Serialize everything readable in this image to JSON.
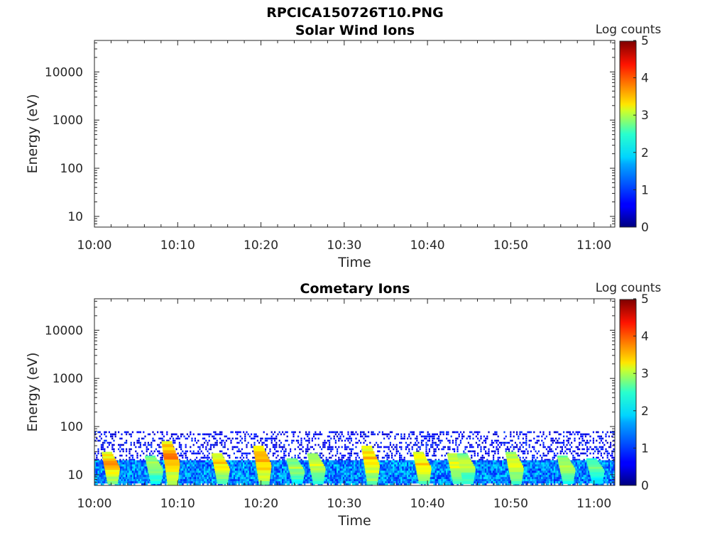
{
  "figure_title": "RPCICA150726T10.PNG",
  "chart_data": [
    {
      "type": "heatmap",
      "title": "Solar Wind Ions",
      "xlabel": "Time",
      "ylabel": "Energy (eV)",
      "y_scale": "log",
      "ylim": [
        6,
        45000
      ],
      "y_ticks": [
        {
          "value": 10,
          "label": "10"
        },
        {
          "value": 100,
          "label": "100"
        },
        {
          "value": 1000,
          "label": "1000"
        },
        {
          "value": 10000,
          "label": "10000"
        }
      ],
      "x_range_minutes": [
        0,
        62.5
      ],
      "x_ticks": [
        {
          "value": 0,
          "label": "10:00"
        },
        {
          "value": 10,
          "label": "10:10"
        },
        {
          "value": 20,
          "label": "10:20"
        },
        {
          "value": 30,
          "label": "10:30"
        },
        {
          "value": 40,
          "label": "10:40"
        },
        {
          "value": 50,
          "label": "10:50"
        },
        {
          "value": 60,
          "label": "11:00"
        }
      ],
      "colorbar": {
        "label": "Log counts",
        "range": [
          0,
          5
        ],
        "ticks": [
          "0",
          "1",
          "2",
          "3",
          "4",
          "5"
        ],
        "colormap": "jet"
      },
      "grid": false,
      "data": "empty"
    },
    {
      "type": "heatmap",
      "title": "Cometary Ions",
      "xlabel": "Time",
      "ylabel": "Energy (eV)",
      "y_scale": "log",
      "ylim": [
        6,
        45000
      ],
      "y_ticks": [
        {
          "value": 10,
          "label": "10"
        },
        {
          "value": 100,
          "label": "100"
        },
        {
          "value": 1000,
          "label": "1000"
        },
        {
          "value": 10000,
          "label": "10000"
        }
      ],
      "x_range_minutes": [
        0,
        62.5
      ],
      "x_ticks": [
        {
          "value": 0,
          "label": "10:00"
        },
        {
          "value": 10,
          "label": "10:10"
        },
        {
          "value": 20,
          "label": "10:20"
        },
        {
          "value": 30,
          "label": "10:30"
        },
        {
          "value": 40,
          "label": "10:40"
        },
        {
          "value": 50,
          "label": "10:50"
        },
        {
          "value": 60,
          "label": "11:00"
        }
      ],
      "colorbar": {
        "label": "Log counts",
        "range": [
          0,
          5
        ],
        "ticks": [
          "0",
          "1",
          "2",
          "3",
          "4",
          "5"
        ],
        "colormap": "jet"
      },
      "grid": false,
      "background_band": {
        "energy_range_eV": [
          6,
          20
        ],
        "log_counts": 1.4
      },
      "noise_band": {
        "energy_range_eV": [
          20,
          80
        ],
        "log_counts": 0.3
      },
      "bursts": [
        {
          "time_min": 1.3,
          "peak_energy_eV": 30,
          "log_counts": 3.6
        },
        {
          "time_min": 6.5,
          "peak_energy_eV": 25,
          "log_counts": 2.8
        },
        {
          "time_min": 8.5,
          "peak_energy_eV": 50,
          "log_counts": 3.8
        },
        {
          "time_min": 14.5,
          "peak_energy_eV": 28,
          "log_counts": 3.4
        },
        {
          "time_min": 19.5,
          "peak_energy_eV": 40,
          "log_counts": 3.7
        },
        {
          "time_min": 23.5,
          "peak_energy_eV": 22,
          "log_counts": 2.8
        },
        {
          "time_min": 26.0,
          "peak_energy_eV": 28,
          "log_counts": 3.0
        },
        {
          "time_min": 32.5,
          "peak_energy_eV": 40,
          "log_counts": 3.5
        },
        {
          "time_min": 38.7,
          "peak_energy_eV": 30,
          "log_counts": 3.4
        },
        {
          "time_min": 42.8,
          "peak_energy_eV": 28,
          "log_counts": 3.2
        },
        {
          "time_min": 44.0,
          "peak_energy_eV": 28,
          "log_counts": 2.9
        },
        {
          "time_min": 49.8,
          "peak_energy_eV": 30,
          "log_counts": 3.2
        },
        {
          "time_min": 56.0,
          "peak_energy_eV": 25,
          "log_counts": 2.9
        },
        {
          "time_min": 59.5,
          "peak_energy_eV": 22,
          "log_counts": 2.6
        }
      ]
    }
  ]
}
